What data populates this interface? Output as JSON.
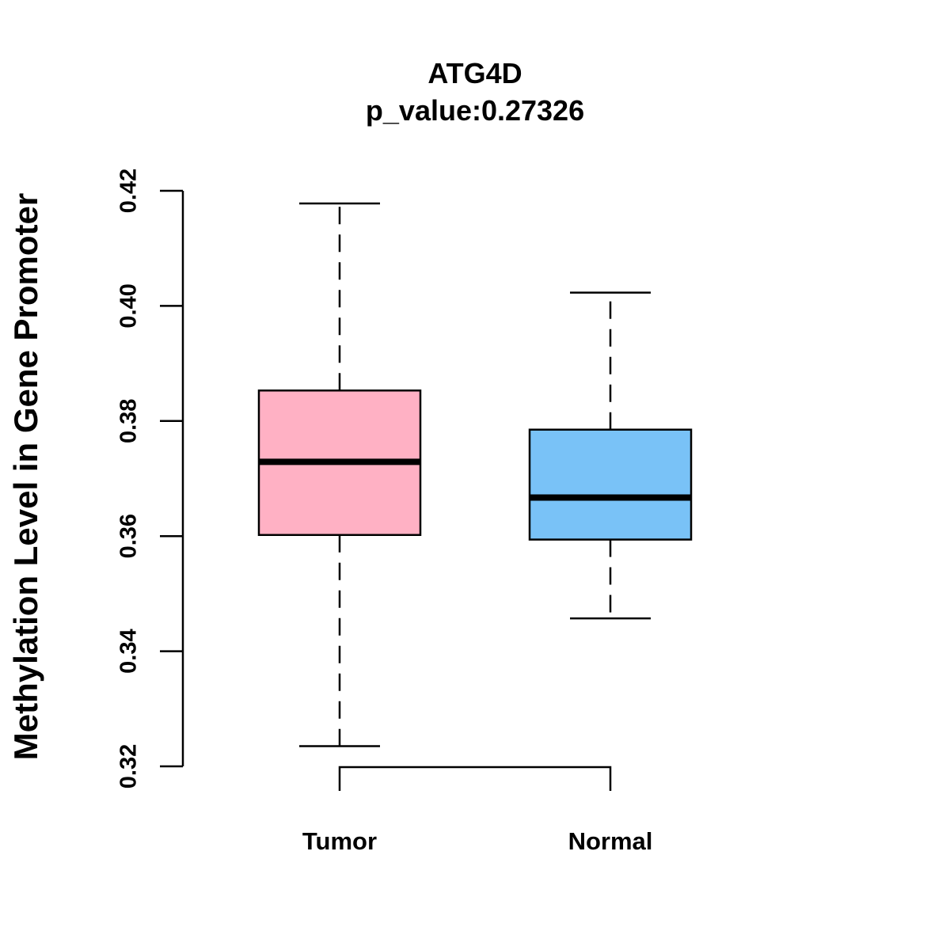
{
  "chart_data": {
    "type": "boxplot",
    "title": "ATG4D",
    "subtitle": "p_value:0.27326",
    "xlabel": "",
    "ylabel": "Methylation Level in Gene Promoter",
    "ylim": [
      0.32,
      0.42
    ],
    "yticks": [
      0.32,
      0.34,
      0.36,
      0.38,
      0.4,
      0.42
    ],
    "ytick_labels": [
      "0.32",
      "0.34",
      "0.36",
      "0.38",
      "0.40",
      "0.42"
    ],
    "grid": false,
    "categories": [
      "Tumor",
      "Normal"
    ],
    "boxes": [
      {
        "name": "Tumor",
        "whisker_low": 0.3235,
        "q1": 0.3602,
        "median": 0.3729,
        "q3": 0.3853,
        "whisker_high": 0.4178,
        "color": "#FFB1C4"
      },
      {
        "name": "Normal",
        "whisker_low": 0.3457,
        "q1": 0.3594,
        "median": 0.3667,
        "q3": 0.3785,
        "whisker_high": 0.4023,
        "color": "#79C2F7"
      }
    ],
    "comparison_bracket": [
      "Tumor",
      "Normal"
    ]
  }
}
